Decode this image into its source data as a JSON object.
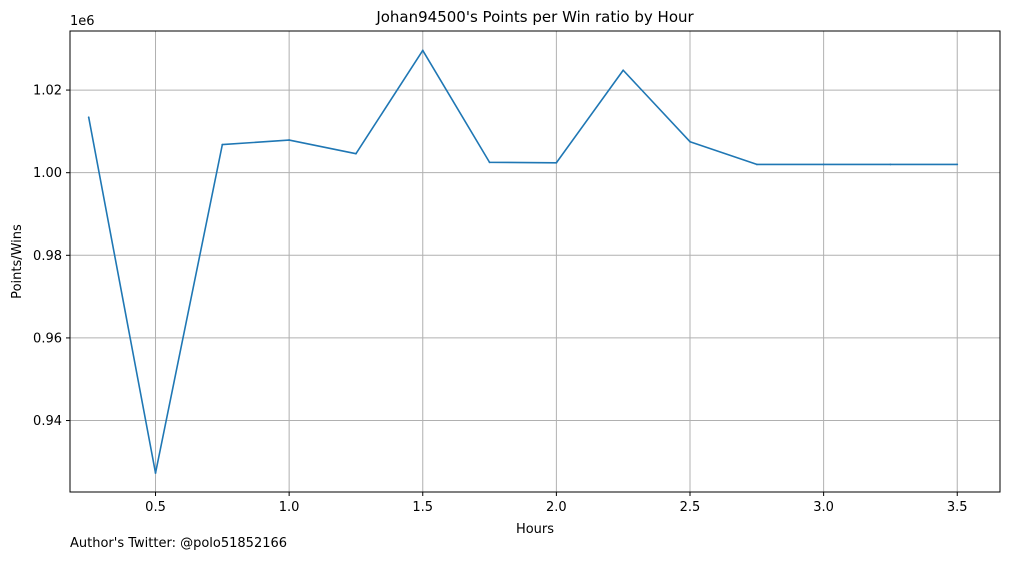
{
  "chart_data": {
    "type": "line",
    "title": "Johan94500's Points per Win ratio by Hour",
    "xlabel": "Hours",
    "ylabel": "Points/Wins",
    "y_offset_label": "1e6",
    "xlim": [
      0.18,
      3.66
    ],
    "ylim": [
      0.9227,
      1.0343
    ],
    "x_ticks": [
      0.5,
      1.0,
      1.5,
      2.0,
      2.5,
      3.0,
      3.5
    ],
    "x_tick_labels": [
      "0.5",
      "1.0",
      "1.5",
      "2.0",
      "2.5",
      "3.0",
      "3.5"
    ],
    "y_ticks": [
      0.94,
      0.96,
      0.98,
      1.0,
      1.02
    ],
    "y_tick_labels": [
      "0.94",
      "0.96",
      "0.98",
      "1.00",
      "1.02"
    ],
    "grid": true,
    "series": [
      {
        "x": [
          0.25,
          0.5,
          0.75,
          1.0,
          1.25,
          1.5,
          1.75,
          2.0,
          2.25,
          2.5,
          2.75,
          3.0,
          3.25,
          3.5
        ],
        "y": [
          1.0134,
          0.9273,
          1.0068,
          1.0079,
          1.0046,
          1.0296,
          1.0025,
          1.0024,
          1.0248,
          1.0075,
          1.002,
          1.002,
          1.002,
          1.002
        ],
        "color": "#1f77b4"
      }
    ]
  },
  "footer": {
    "author_note": "Author's Twitter: @polo51852166"
  }
}
